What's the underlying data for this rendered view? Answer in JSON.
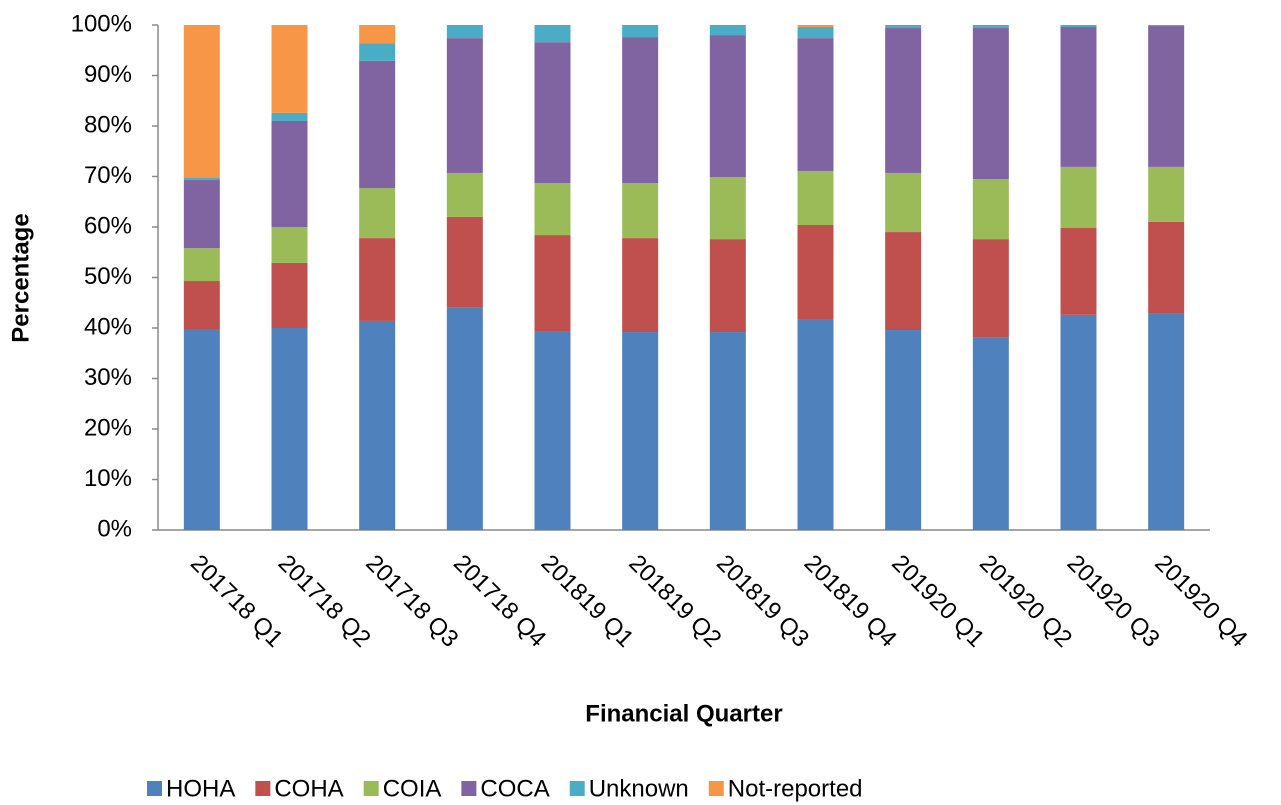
{
  "chart_data": {
    "type": "stacked_bar_100",
    "x_label": "Financial Quarter",
    "y_label": "Percentage",
    "categories": [
      "201718 Q1",
      "201718 Q2",
      "201718 Q3",
      "201718 Q4",
      "201819 Q1",
      "201819 Q2",
      "201819 Q3",
      "201819 Q4",
      "201920 Q1",
      "201920 Q2",
      "201920 Q3",
      "201920 Q4"
    ],
    "series": [
      {
        "name": "HOHA",
        "color": "#4f81bd",
        "values": [
          39.8,
          40.0,
          41.4,
          44.0,
          39.4,
          39.2,
          39.2,
          41.6,
          39.6,
          38.2,
          42.6,
          42.8
        ]
      },
      {
        "name": "COHA",
        "color": "#c0504d",
        "values": [
          9.5,
          12.9,
          16.4,
          18.0,
          19.0,
          18.6,
          18.4,
          18.8,
          19.4,
          19.4,
          17.2,
          18.2
        ]
      },
      {
        "name": "COIA",
        "color": "#9bbb59",
        "values": [
          6.5,
          7.1,
          9.9,
          8.7,
          10.3,
          10.9,
          12.3,
          10.7,
          11.7,
          11.9,
          12.1,
          10.9
        ]
      },
      {
        "name": "COCA",
        "color": "#8064a2",
        "values": [
          13.5,
          21.0,
          25.2,
          26.7,
          27.9,
          28.9,
          28.1,
          26.3,
          28.7,
          29.9,
          27.7,
          27.9
        ]
      },
      {
        "name": "Unknown",
        "color": "#4bacc6",
        "values": [
          0.4,
          1.6,
          3.5,
          2.6,
          3.4,
          2.4,
          2.0,
          2.2,
          0.6,
          0.6,
          0.4,
          0.2
        ]
      },
      {
        "name": "Not-reported",
        "color": "#f79646",
        "values": [
          30.3,
          17.4,
          3.6,
          0,
          0,
          0,
          0,
          0.4,
          0,
          0,
          0,
          0
        ]
      }
    ],
    "ylim": [
      0,
      100
    ],
    "yticks": [
      {
        "value": 0,
        "label": "0%"
      },
      {
        "value": 10,
        "label": "10%"
      },
      {
        "value": 20,
        "label": "20%"
      },
      {
        "value": 30,
        "label": "30%"
      },
      {
        "value": 40,
        "label": "40%"
      },
      {
        "value": 50,
        "label": "50%"
      },
      {
        "value": 60,
        "label": "60%"
      },
      {
        "value": 70,
        "label": "70%"
      },
      {
        "value": 80,
        "label": "80%"
      },
      {
        "value": 90,
        "label": "90%"
      },
      {
        "value": 100,
        "label": "100%"
      }
    ],
    "grid": false,
    "legend": "bottom"
  }
}
